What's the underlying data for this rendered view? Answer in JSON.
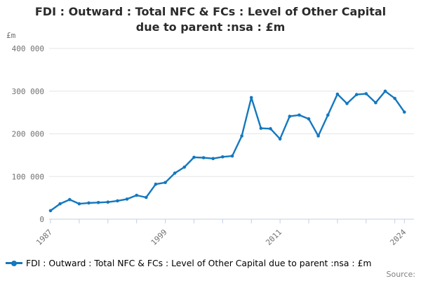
{
  "title": {
    "line1": "FDI : Outward : Total NFC & FCs : Level of Other Capital",
    "line2": "due to parent :nsa : £m"
  },
  "y_axis": {
    "unit": "£m",
    "ticks": [
      {
        "value": 0,
        "label": "0"
      },
      {
        "value": 100000,
        "label": "100 000"
      },
      {
        "value": 200000,
        "label": "200 000"
      },
      {
        "value": 300000,
        "label": "300 000"
      },
      {
        "value": 400000,
        "label": "400 000"
      }
    ],
    "range": [
      0,
      400000
    ]
  },
  "x_axis": {
    "tick_years": [
      1987,
      1990,
      1993,
      1996,
      1999,
      2002,
      2005,
      2008,
      2011,
      2014,
      2017,
      2020,
      2023,
      2024
    ],
    "labeled_ticks": [
      1987,
      1999,
      2011,
      2024
    ],
    "range": [
      1987,
      2024
    ]
  },
  "legend": {
    "label": "FDI : Outward : Total NFC & FCs : Level of Other Capital due to parent :nsa : £m"
  },
  "source": {
    "label": "Source:"
  },
  "colors": {
    "line": "#1478be",
    "grid": "#e6e6e6",
    "axis": "#c3cfe2",
    "text_muted": "#707070",
    "title_text": "#2b2b2b"
  },
  "chart_data": {
    "type": "line",
    "title": "FDI : Outward : Total NFC & FCs : Level of Other Capital due to parent :nsa : £m",
    "xlabel": "",
    "ylabel": "£m",
    "ylim": [
      0,
      400000
    ],
    "grid": "horizontal",
    "legend_position": "bottom",
    "marker": "circle",
    "x": [
      1987,
      1988,
      1989,
      1990,
      1991,
      1992,
      1993,
      1994,
      1995,
      1996,
      1997,
      1998,
      1999,
      2000,
      2001,
      2002,
      2003,
      2004,
      2005,
      2006,
      2007,
      2008,
      2009,
      2010,
      2011,
      2012,
      2013,
      2014,
      2015,
      2016,
      2017,
      2018,
      2019,
      2020,
      2021,
      2022,
      2023,
      2024
    ],
    "values": [
      20000,
      36000,
      46000,
      36000,
      38000,
      39000,
      40000,
      43000,
      47000,
      56000,
      51000,
      82000,
      86000,
      108000,
      122000,
      145000,
      144000,
      142000,
      146000,
      148000,
      195000,
      285000,
      213000,
      212000,
      188000,
      241000,
      244000,
      235000,
      195000,
      244000,
      293000,
      271000,
      292000,
      294000,
      273000,
      300000,
      283000,
      251000
    ]
  }
}
